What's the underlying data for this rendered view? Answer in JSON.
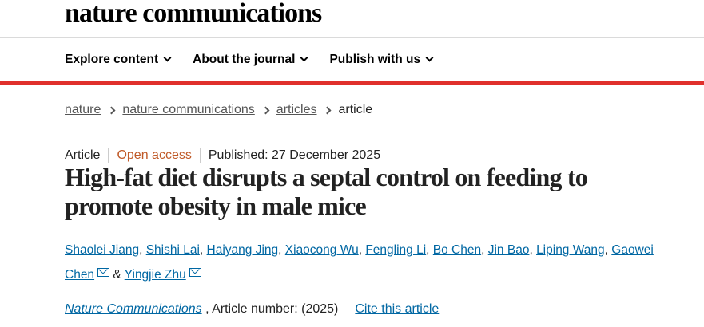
{
  "header": {
    "logo": "nature communications"
  },
  "nav": [
    {
      "label": "Explore content"
    },
    {
      "label": "About the journal"
    },
    {
      "label": "Publish with us"
    }
  ],
  "breadcrumb": [
    "nature",
    "nature communications",
    "articles",
    "article"
  ],
  "meta": {
    "type": "Article",
    "access": "Open access",
    "published": "Published: 27 December 2025"
  },
  "title": "High-fat diet disrupts a septal control on feeding to promote obesity in male mice",
  "authors": [
    "Shaolei Jiang",
    "Shishi Lai",
    "Haiyang Jing",
    "Xiaocong Wu",
    "Fengling Li",
    "Bo Chen",
    "Jin Bao",
    "Liping Wang",
    "Gaowei Chen",
    "Yingjie Zhu"
  ],
  "journal": {
    "name": "Nature Communications",
    "article_number": ", Article number:  (2025)",
    "cite": "Cite this article"
  },
  "colors": {
    "accent_red": "#e0302c",
    "link": "#0067a3",
    "open_access": "#c05a28"
  }
}
